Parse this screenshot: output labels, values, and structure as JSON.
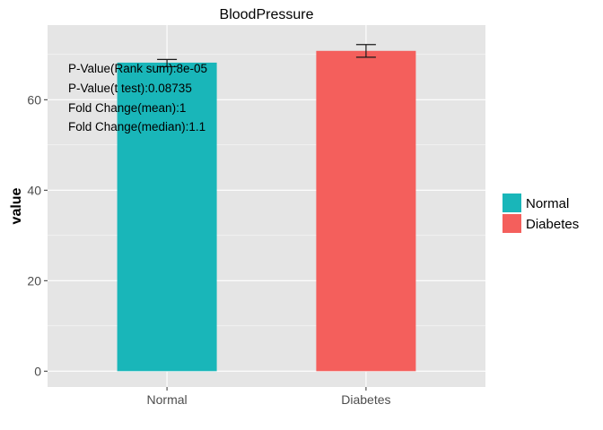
{
  "chart_data": {
    "type": "bar",
    "title": "BloodPressure",
    "xlabel": "",
    "ylabel": "value",
    "categories": [
      "Normal",
      "Diabetes"
    ],
    "values": [
      68.2,
      70.8
    ],
    "error_low": [
      67.3,
      69.4
    ],
    "error_high": [
      68.9,
      72.2
    ],
    "colors": [
      "#19b6b9",
      "#f45f5c"
    ],
    "ylim": [
      -3.5,
      76.5
    ],
    "yticks": [
      0,
      20,
      40,
      60
    ],
    "grid": true,
    "panel_background": "#e5e5e5",
    "legend": {
      "position": "right",
      "entries": [
        "Normal",
        "Diabetes"
      ]
    },
    "annotations": [
      "P-Value(Rank sum):8e-05",
      "P-Value(t test):0.08735",
      "Fold Change(mean):1",
      "Fold Change(median):1.1"
    ]
  }
}
